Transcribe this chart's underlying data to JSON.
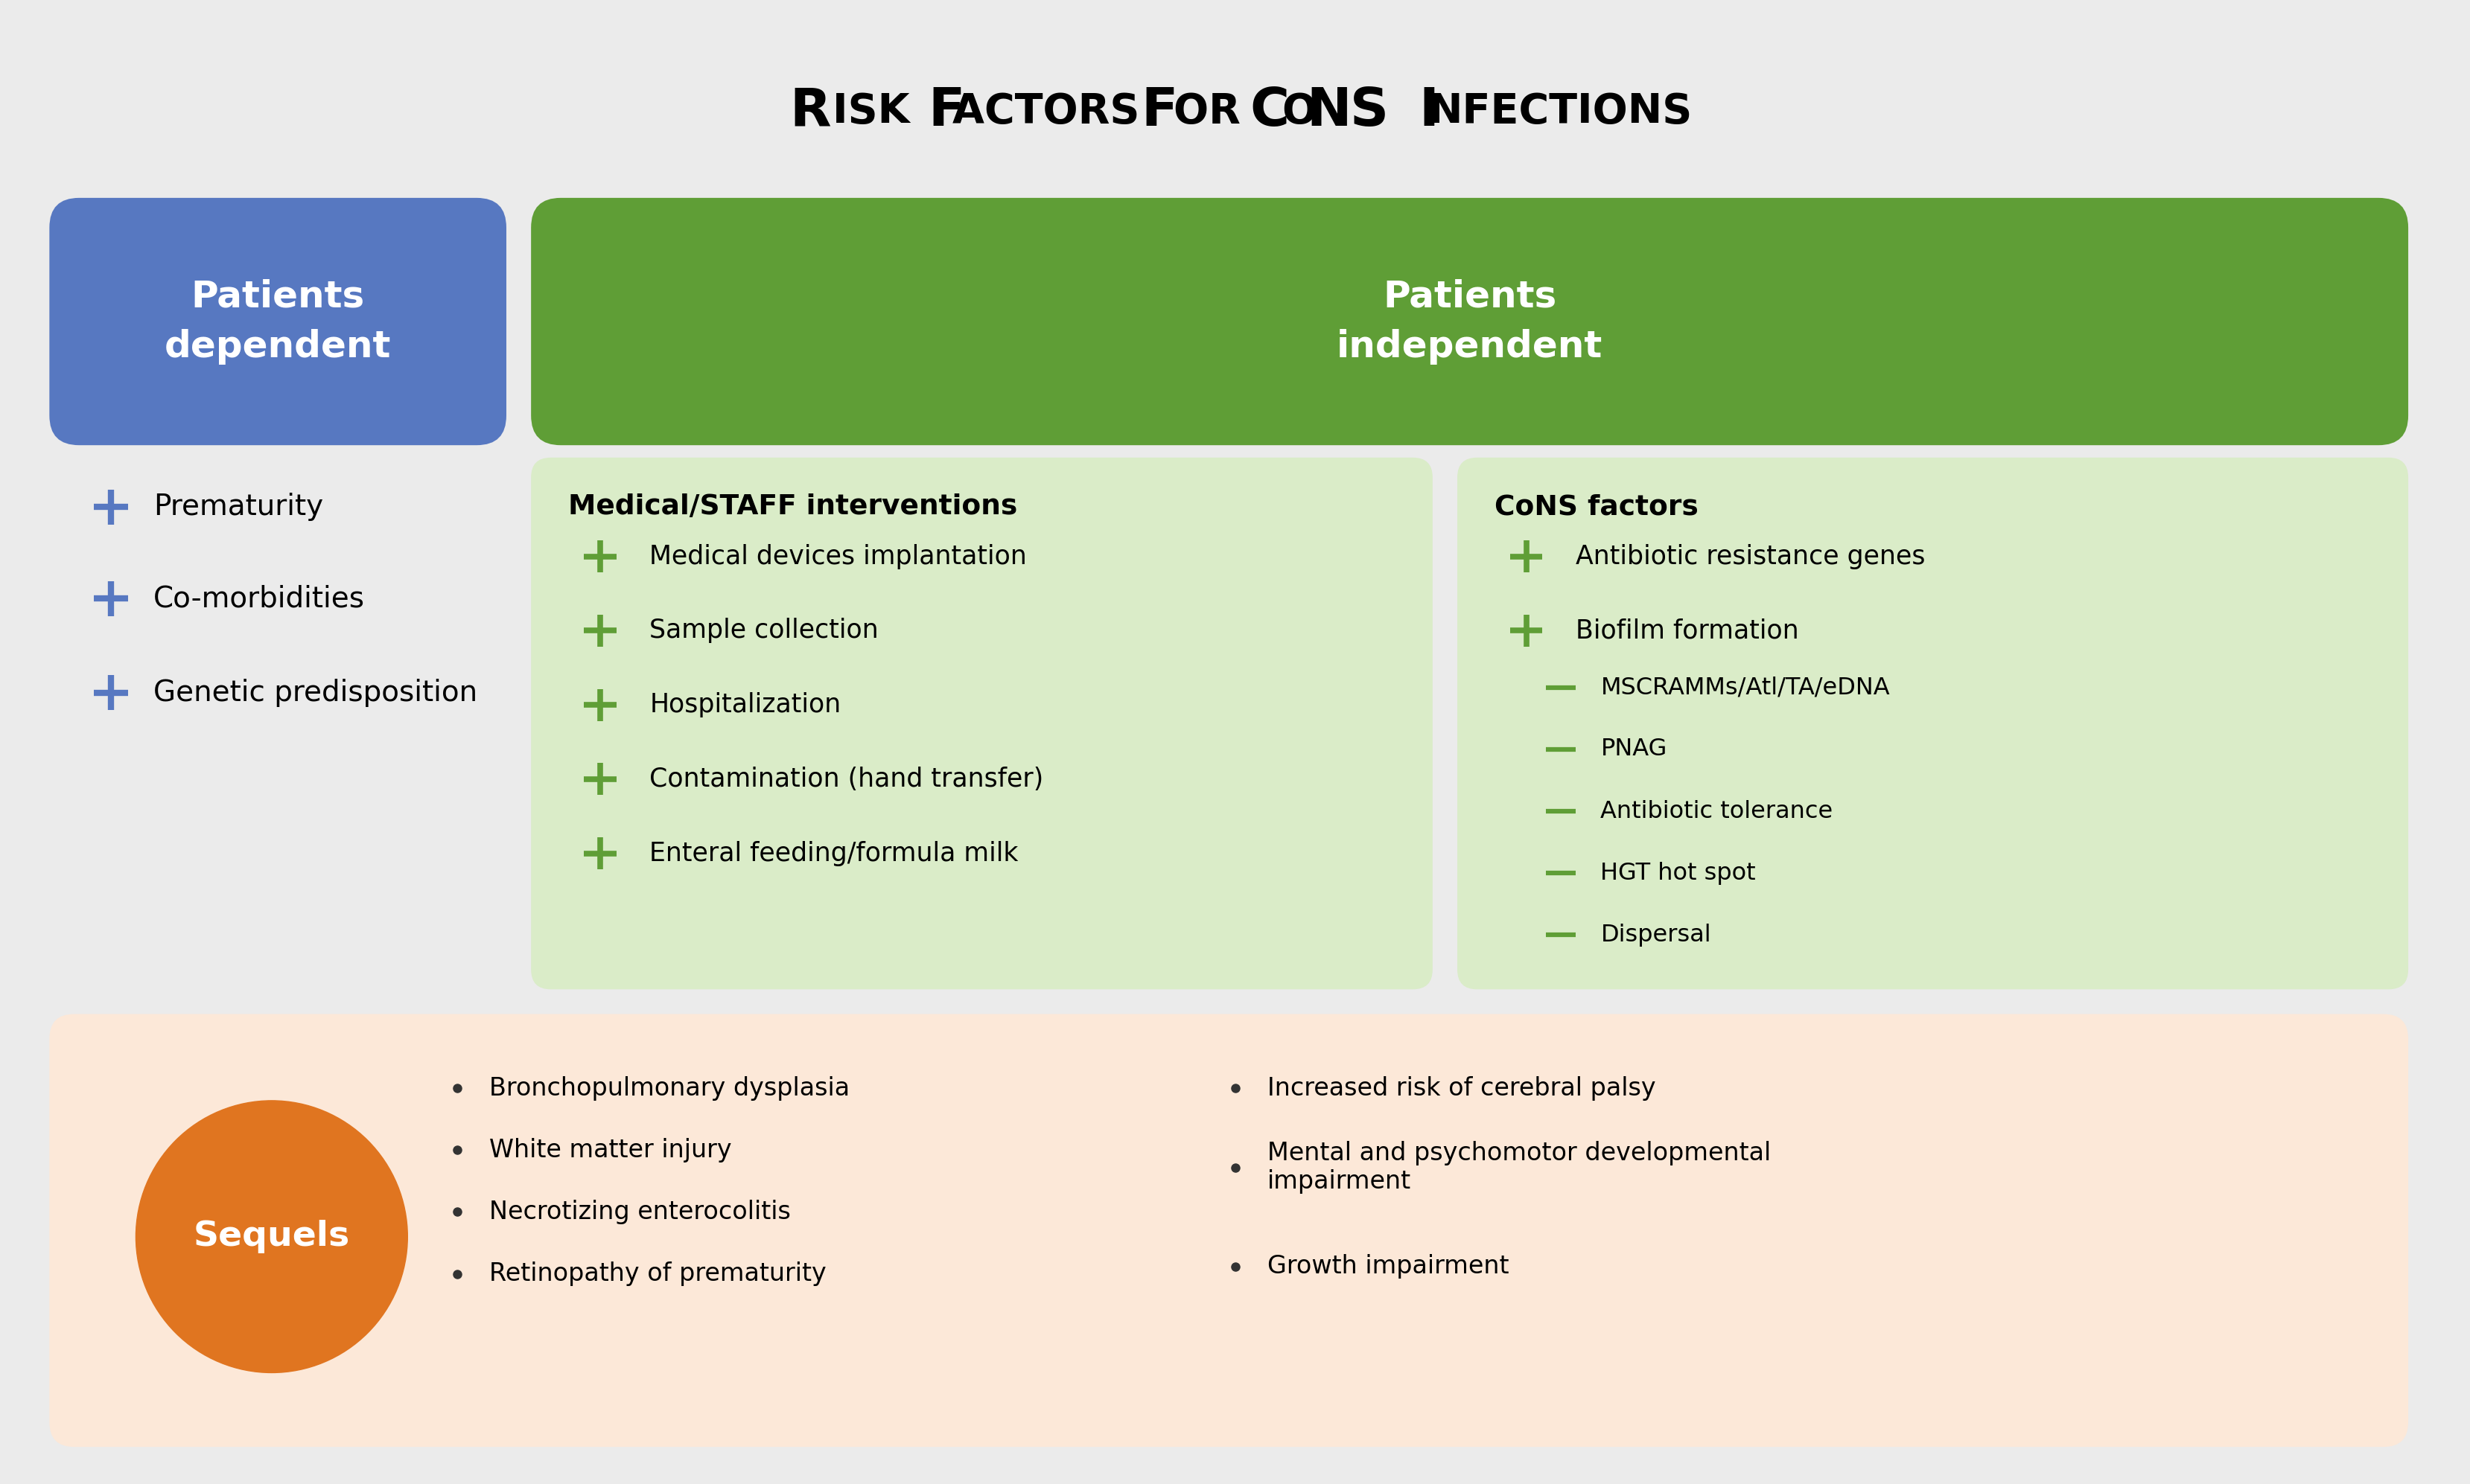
{
  "title_parts": [
    {
      "text": "R",
      "size": 58,
      "bold": true
    },
    {
      "text": "isk ",
      "size": 44,
      "bold": true
    },
    {
      "text": "factors for ",
      "size": 44,
      "bold": true
    },
    {
      "text": "C",
      "size": 58,
      "bold": true
    },
    {
      "text": "o",
      "size": 44,
      "bold": true
    },
    {
      "text": "NS ",
      "size": 58,
      "bold": true
    },
    {
      "text": "infections",
      "size": 44,
      "bold": true
    }
  ],
  "bg_color": "#ebebeb",
  "blue_box_color": "#5778c1",
  "green_box_color": "#5f9e36",
  "light_green_color": "#daecc8",
  "orange_circle_color": "#e07520",
  "light_orange_color": "#fce8d8",
  "patients_dependent_title": "Patients\ndependent",
  "patients_independent_title": "Patients\nindependent",
  "dependent_items": [
    "Prematurity",
    "Co-morbidities",
    "Genetic predisposition"
  ],
  "medical_staff_title": "Medical/STAFF interventions",
  "medical_staff_items": [
    "Medical devices implantation",
    "Sample collection",
    "Hospitalization",
    "Contamination (hand transfer)",
    "Enteral feeding/formula milk"
  ],
  "cons_factors_title": "CoNS factors",
  "cons_items_plus": [
    "Antibiotic resistance genes",
    "Biofilm formation"
  ],
  "cons_items_dash": [
    "MSCRAMMs/Atl/TA/eDNA",
    "PNAG",
    "Antibiotic tolerance",
    "HGT hot spot",
    "Dispersal"
  ],
  "sequels_title": "Sequels",
  "sequels_left": [
    "Bronchopulmonary dysplasia",
    "White matter injury",
    "Necrotizing enterocolitis",
    "Retinopathy of prematurity"
  ],
  "sequels_right": [
    "Increased risk of cerebral palsy",
    "Mental and psychomotor developmental\nimpairment",
    "Growth impairment"
  ]
}
